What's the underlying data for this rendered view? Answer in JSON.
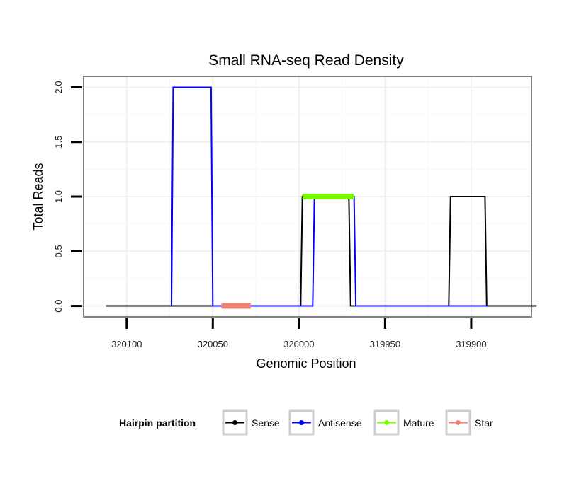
{
  "chart_data": {
    "type": "line",
    "title": "Small RNA-seq Read Density",
    "xlabel": "Genomic Position",
    "ylabel": "Total Reads",
    "x_reversed": true,
    "xlim": [
      320125,
      319865
    ],
    "ylim": [
      -0.1,
      2.1
    ],
    "x_ticks": [
      320100,
      320050,
      320000,
      319950,
      319900
    ],
    "x_tick_labels": [
      "320100",
      "320050",
      "320000",
      "319950",
      "319900"
    ],
    "y_ticks": [
      0,
      0.5,
      1,
      1.5,
      2
    ],
    "y_tick_labels": [
      "0.0",
      "0.5",
      "1.0",
      "1.5",
      "2.0"
    ],
    "grid": true,
    "legend": {
      "title": "Hairpin partition",
      "position": "bottom",
      "entries": [
        {
          "label": "Sense",
          "color": "#000000"
        },
        {
          "label": "Antisense",
          "color": "#0000ff"
        },
        {
          "label": "Mature",
          "color": "#7cfc00"
        },
        {
          "label": "Star",
          "color": "#f08072"
        }
      ]
    },
    "series": [
      {
        "name": "Sense",
        "color": "#000000",
        "points": [
          [
            320112,
            0
          ],
          [
            319999,
            0
          ],
          [
            319998,
            1
          ],
          [
            319971,
            1
          ],
          [
            319970,
            0
          ],
          [
            319913,
            0
          ],
          [
            319912,
            1
          ],
          [
            319892,
            1
          ],
          [
            319891,
            0
          ],
          [
            319862,
            0
          ]
        ]
      },
      {
        "name": "Antisense",
        "color": "#0000ff",
        "points": [
          [
            320074,
            0
          ],
          [
            320073,
            2
          ],
          [
            320051,
            2
          ],
          [
            320050,
            0
          ],
          [
            319992,
            0
          ],
          [
            319991,
            1
          ],
          [
            319968,
            1
          ],
          [
            319967,
            0
          ],
          [
            319891,
            0
          ]
        ]
      },
      {
        "name": "Mature",
        "color": "#7cfc00",
        "points": [
          [
            319998,
            1
          ],
          [
            319968,
            1
          ]
        ]
      },
      {
        "name": "Star",
        "color": "#f08072",
        "points": [
          [
            320045,
            0
          ],
          [
            320028,
            0
          ]
        ]
      }
    ]
  }
}
